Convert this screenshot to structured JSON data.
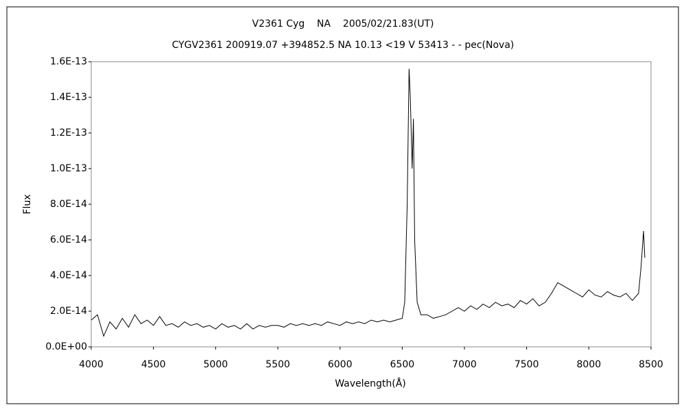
{
  "chart_data": {
    "type": "line",
    "title": "V2361 Cyg    NA    2005/02/21.83(UT)",
    "subtitle": "CYGV2361 200919.07 +394852.5 NA 10.13 <19 V 53413 - - pec(Nova)",
    "xlabel": "Wavelength(Å)",
    "ylabel": "Flux",
    "xlim": [
      4000,
      8500
    ],
    "xticks": [
      4000,
      4500,
      5000,
      5500,
      6000,
      6500,
      7000,
      7500,
      8000,
      8500
    ],
    "ylim": [
      0,
      1.6e-13
    ],
    "yticks": [
      {
        "value": 0,
        "label": "0.0E+00"
      },
      {
        "value": 2e-14,
        "label": "2.0E-14"
      },
      {
        "value": 4e-14,
        "label": "4.0E-14"
      },
      {
        "value": 6e-14,
        "label": "6.0E-14"
      },
      {
        "value": 8e-14,
        "label": "8.0E-14"
      },
      {
        "value": 1e-13,
        "label": "1.0E-13"
      },
      {
        "value": 1.2e-13,
        "label": "1.2E-13"
      },
      {
        "value": 1.4e-13,
        "label": "1.4E-13"
      },
      {
        "value": 1.6e-13,
        "label": "1.6E-13"
      }
    ],
    "grid": false,
    "x": [
      4000,
      4050,
      4100,
      4150,
      4200,
      4250,
      4300,
      4350,
      4400,
      4450,
      4500,
      4550,
      4600,
      4650,
      4700,
      4750,
      4800,
      4850,
      4900,
      4950,
      5000,
      5050,
      5100,
      5150,
      5200,
      5250,
      5300,
      5350,
      5400,
      5450,
      5500,
      5550,
      5600,
      5650,
      5700,
      5750,
      5800,
      5850,
      5900,
      5950,
      6000,
      6050,
      6100,
      6150,
      6200,
      6250,
      6300,
      6350,
      6400,
      6450,
      6500,
      6520,
      6540,
      6555,
      6565,
      6580,
      6590,
      6600,
      6620,
      6650,
      6700,
      6750,
      6800,
      6850,
      6900,
      6950,
      7000,
      7050,
      7100,
      7150,
      7200,
      7250,
      7300,
      7350,
      7400,
      7450,
      7500,
      7550,
      7600,
      7650,
      7700,
      7750,
      7800,
      7850,
      7900,
      7950,
      8000,
      8050,
      8100,
      8150,
      8200,
      8250,
      8300,
      8350,
      8400,
      8420,
      8440,
      8450
    ],
    "series": [
      {
        "name": "Flux",
        "color": "#000000",
        "values": [
          1.5e-14,
          1.8e-14,
          6e-15,
          1.4e-14,
          1e-14,
          1.6e-14,
          1.1e-14,
          1.8e-14,
          1.3e-14,
          1.5e-14,
          1.2e-14,
          1.7e-14,
          1.2e-14,
          1.3e-14,
          1.1e-14,
          1.4e-14,
          1.2e-14,
          1.3e-14,
          1.1e-14,
          1.2e-14,
          1e-14,
          1.3e-14,
          1.1e-14,
          1.2e-14,
          1e-14,
          1.3e-14,
          1e-14,
          1.2e-14,
          1.1e-14,
          1.2e-14,
          1.2e-14,
          1.1e-14,
          1.3e-14,
          1.2e-14,
          1.3e-14,
          1.2e-14,
          1.3e-14,
          1.2e-14,
          1.4e-14,
          1.3e-14,
          1.2e-14,
          1.4e-14,
          1.3e-14,
          1.4e-14,
          1.3e-14,
          1.5e-14,
          1.4e-14,
          1.5e-14,
          1.4e-14,
          1.5e-14,
          1.6e-14,
          2.5e-14,
          8e-14,
          1.56e-13,
          1.4e-13,
          1e-13,
          1.28e-13,
          6e-14,
          2.5e-14,
          1.8e-14,
          1.8e-14,
          1.6e-14,
          1.7e-14,
          1.8e-14,
          2e-14,
          2.2e-14,
          2e-14,
          2.3e-14,
          2.1e-14,
          2.4e-14,
          2.2e-14,
          2.5e-14,
          2.3e-14,
          2.4e-14,
          2.2e-14,
          2.6e-14,
          2.4e-14,
          2.7e-14,
          2.3e-14,
          2.5e-14,
          3e-14,
          3.6e-14,
          3.4e-14,
          3.2e-14,
          3e-14,
          2.8e-14,
          3.2e-14,
          2.9e-14,
          2.8e-14,
          3.1e-14,
          2.9e-14,
          2.8e-14,
          3e-14,
          2.6e-14,
          3e-14,
          4.5e-14,
          6.5e-14,
          5e-14
        ]
      }
    ]
  }
}
